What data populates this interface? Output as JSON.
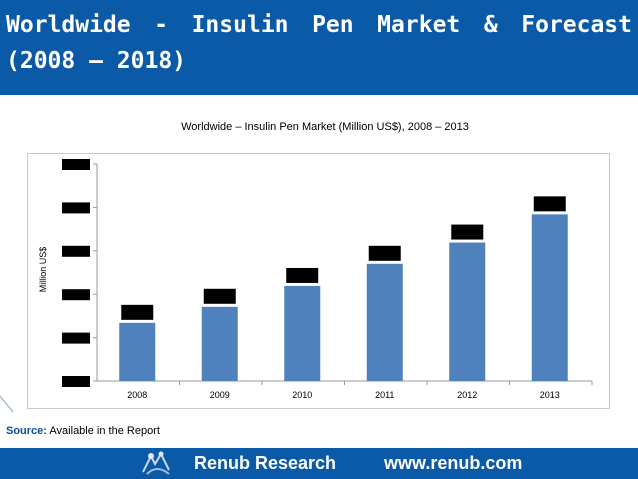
{
  "slide": {
    "title": "Worldwide - Insulin Pen Market & Forecast (2008 – 2018)",
    "source_label": "Source:",
    "source_text": "Available in the Report"
  },
  "footer": {
    "company": "Renub Research",
    "url": "www.renub.com"
  },
  "colors": {
    "header_bg": "#0b5aa8",
    "bar": "#4f81bd",
    "redaction": "#000000"
  },
  "chart_data": {
    "type": "bar",
    "title": "Worldwide – Insulin Pen Market (Million US$), 2008 – 2013",
    "ylabel": "Million US$",
    "xlabel": "",
    "categories": [
      "2008",
      "2009",
      "2010",
      "2011",
      "2012",
      "2013"
    ],
    "values": [
      1340,
      1710,
      2190,
      2700,
      3190,
      3840
    ],
    "ylim": [
      0,
      5000
    ],
    "ytick_count": 6,
    "value_labels_hidden": true,
    "ytick_labels_hidden": true,
    "grid": false
  }
}
